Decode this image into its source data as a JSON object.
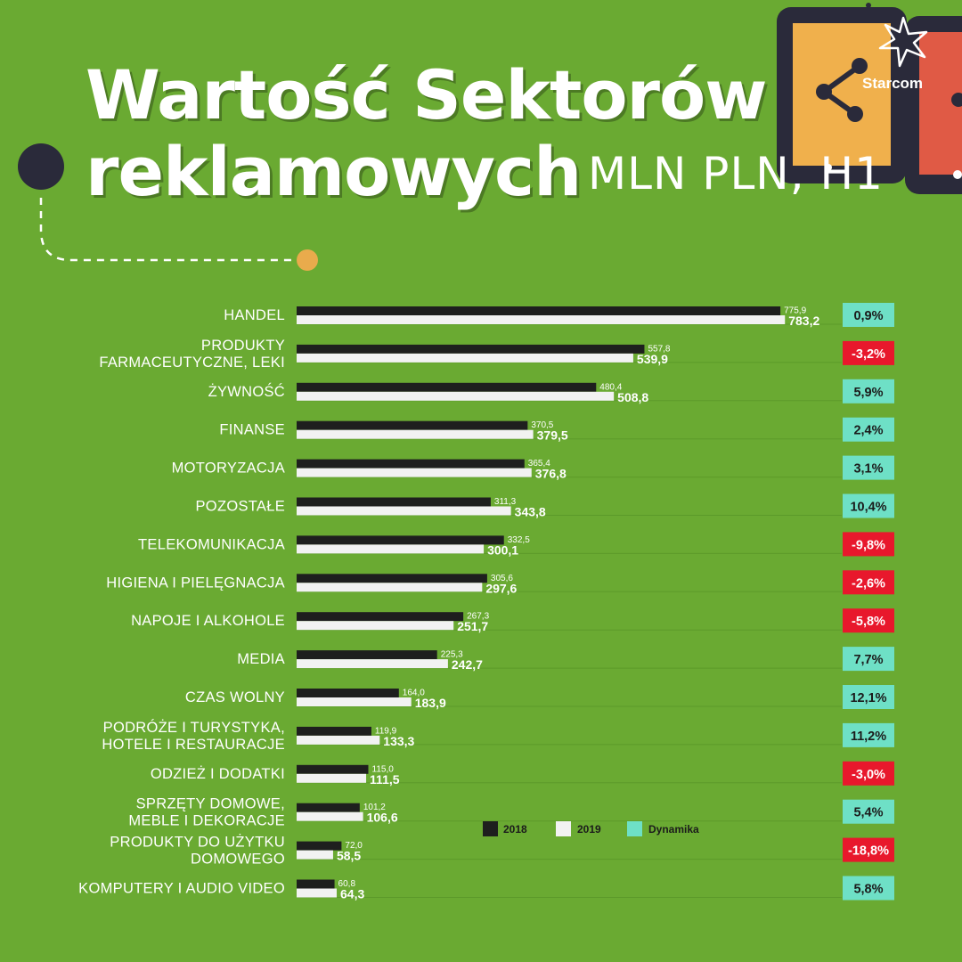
{
  "header": {
    "title_line1": "Wartość Sektorów",
    "title_line2": "reklamowych",
    "title_unit": "MLN PLN, H1"
  },
  "brand": {
    "name": "Starcom"
  },
  "colors": {
    "background": "#6aaa32",
    "bar_2018": "#1e1f1e",
    "bar_2019": "#f2f2f2",
    "dynamika_positive": "#6ee0c6",
    "dynamika_negative": "#e8182c",
    "accent_dot": "#e9ab4c",
    "dark_dot": "#2a2a3a"
  },
  "chart_data": {
    "type": "bar",
    "orientation": "horizontal",
    "title": "Wartość Sektorów reklamowych MLN PLN, H1",
    "categories": [
      "HANDEL",
      "PRODUKTY\nFARMACEUTYCZNE, LEKI",
      "ŻYWNOŚĆ",
      "FINANSE",
      "MOTORYZACJA",
      "POZOSTAŁE",
      "TELEKOMUNIKACJA",
      "HIGIENA I PIELĘGNACJA",
      "NAPOJE I ALKOHOLE",
      "MEDIA",
      "CZAS WOLNY",
      "PODRÓŻE I TURYSTYKA,\nHOTELE I RESTAURACJE",
      "ODZIEŻ I DODATKI",
      "SPRZĘTY DOMOWE,\nMEBLE I DEKORACJE",
      "PRODUKTY DO UŻYTKU\nDOMOWEGO",
      "KOMPUTERY I AUDIO VIDEO"
    ],
    "series": [
      {
        "name": "2018",
        "values": [
          775.9,
          557.8,
          480.4,
          370.5,
          365.4,
          311.3,
          332.5,
          305.6,
          267.3,
          225.3,
          164.0,
          119.9,
          115.0,
          101.2,
          72.0,
          60.8
        ],
        "labels": [
          "775,9",
          "557,8",
          "480,4",
          "370,5",
          "365,4",
          "311,3",
          "332,5",
          "305,6",
          "267,3",
          "225,3",
          "164,0",
          "119,9",
          "115,0",
          "101,2",
          "72,0",
          "60,8"
        ]
      },
      {
        "name": "2019",
        "values": [
          783.2,
          539.9,
          508.8,
          379.5,
          376.8,
          343.8,
          300.1,
          297.6,
          251.7,
          242.7,
          183.9,
          133.3,
          111.5,
          106.6,
          58.5,
          64.3
        ],
        "labels": [
          "783,2",
          "539,9",
          "508,8",
          "379,5",
          "376,8",
          "343,8",
          "300,1",
          "297,6",
          "251,7",
          "242,7",
          "183,9",
          "133,3",
          "111,5",
          "106,6",
          "58,5",
          "64,3"
        ]
      }
    ],
    "dynamika": {
      "name": "Dynamika",
      "labels": [
        "0,9%",
        "-3,2%",
        "5,9%",
        "2,4%",
        "3,1%",
        "10,4%",
        "-9,8%",
        "-2,6%",
        "-5,8%",
        "7,7%",
        "12,1%",
        "11,2%",
        "-3,0%",
        "5,4%",
        "-18,8%",
        "5,8%"
      ],
      "values": [
        0.9,
        -3.2,
        5.9,
        2.4,
        3.1,
        10.4,
        -9.8,
        -2.6,
        -5.8,
        7.7,
        12.1,
        11.2,
        -3.0,
        5.4,
        -18.8,
        5.8
      ]
    },
    "legend": {
      "position": "bottom-right",
      "items": [
        "2018",
        "2019",
        "Dynamika"
      ]
    },
    "grid": false,
    "xlim": [
      0,
      800
    ]
  }
}
